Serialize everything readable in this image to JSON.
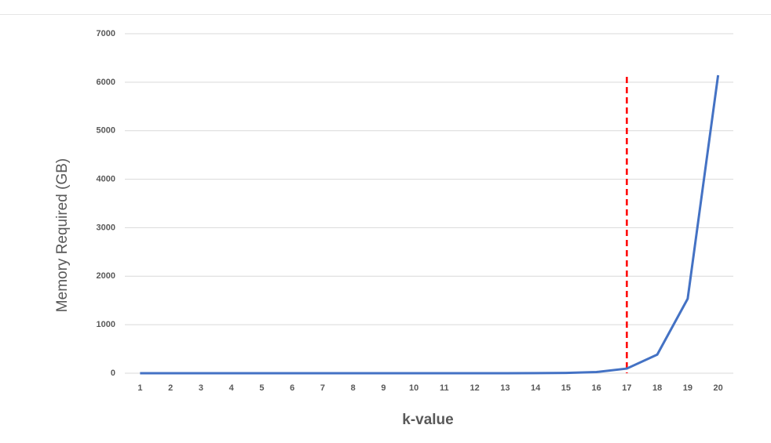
{
  "chart_data": {
    "type": "line",
    "x_label": "k-value",
    "y_label": "Memory Required (GB)",
    "categories": [
      "1",
      "2",
      "3",
      "4",
      "5",
      "6",
      "7",
      "8",
      "9",
      "10",
      "11",
      "12",
      "13",
      "14",
      "15",
      "16",
      "17",
      "18",
      "19",
      "20"
    ],
    "series": [
      {
        "color": "#4472c4",
        "values": [
          0,
          0,
          0,
          0,
          0,
          0,
          0,
          0,
          0,
          0,
          0,
          0,
          0,
          1.5,
          6,
          24,
          96,
          384,
          1536,
          6144
        ]
      }
    ],
    "ylim": [
      0,
      7000
    ],
    "yticks": [
      0,
      1000,
      2000,
      3000,
      4000,
      5000,
      6000,
      7000
    ],
    "grid": true,
    "vline": {
      "x": "17",
      "color": "#ff0000",
      "style": "dashed"
    }
  }
}
